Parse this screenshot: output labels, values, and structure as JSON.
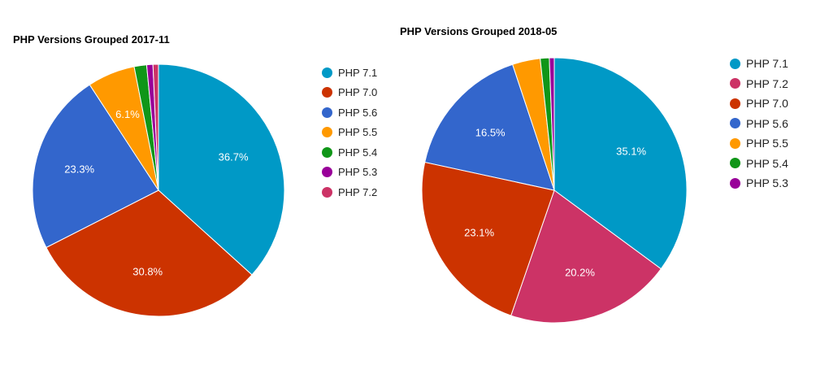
{
  "chart_data": [
    {
      "type": "pie",
      "title": "PHP Versions Grouped 2017-11",
      "labels": [
        "PHP 7.1",
        "PHP 7.0",
        "PHP 5.6",
        "PHP 5.5",
        "PHP 5.4",
        "PHP 5.3",
        "PHP 7.2"
      ],
      "values": [
        36.7,
        30.8,
        23.3,
        6.1,
        1.6,
        0.8,
        0.7
      ],
      "slice_labels": [
        "36.7%",
        "30.8%",
        "23.3%",
        "6.1%",
        "",
        "",
        ""
      ],
      "colors": [
        "#0099c6",
        "#cc3300",
        "#3366cc",
        "#ff9900",
        "#109618",
        "#990099",
        "#cc3366"
      ],
      "legend_position": "right"
    },
    {
      "type": "pie",
      "title": "PHP Versions Grouped 2018-05",
      "labels": [
        "PHP 7.1",
        "PHP 7.2",
        "PHP 7.0",
        "PHP 5.6",
        "PHP 5.5",
        "PHP 5.4",
        "PHP 5.3"
      ],
      "values": [
        35.1,
        20.2,
        23.1,
        16.5,
        3.4,
        1.1,
        0.6
      ],
      "slice_labels": [
        "35.1%",
        "20.2%",
        "23.1%",
        "16.5%",
        "",
        "",
        ""
      ],
      "colors": [
        "#0099c6",
        "#cc3366",
        "#cc3300",
        "#3366cc",
        "#ff9900",
        "#109618",
        "#990099"
      ],
      "legend_position": "right"
    }
  ]
}
